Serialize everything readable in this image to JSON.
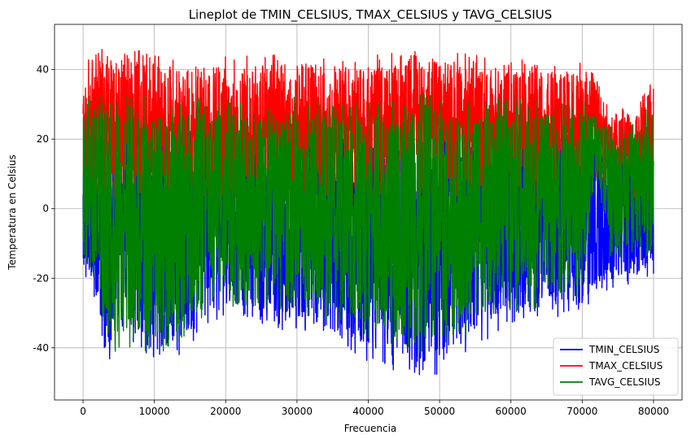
{
  "chart_data": {
    "type": "line",
    "title": "Lineplot de TMIN_CELSIUS, TMAX_CELSIUS y TAVG_CELSIUS",
    "xlabel": "Frecuencia",
    "ylabel": "Temperatura en Celsius",
    "xlim": [
      -4000,
      84000
    ],
    "ylim": [
      -55,
      53
    ],
    "xticks": [
      0,
      10000,
      20000,
      30000,
      40000,
      50000,
      60000,
      70000,
      80000
    ],
    "yticks": [
      -40,
      -20,
      0,
      20,
      40
    ],
    "grid": true,
    "legend_position": "lower-right",
    "x_range": [
      0,
      80000
    ],
    "series": [
      {
        "name": "TMIN_CELSIUS",
        "color": "#0000ff",
        "envelope": [
          {
            "x": 0,
            "low": -18,
            "high": 22
          },
          {
            "x": 2000,
            "low": -28,
            "high": 25
          },
          {
            "x": 3000,
            "low": -47,
            "high": 26
          },
          {
            "x": 6000,
            "low": -35,
            "high": 26
          },
          {
            "x": 10000,
            "low": -49,
            "high": 25
          },
          {
            "x": 20000,
            "low": -31,
            "high": 25
          },
          {
            "x": 30000,
            "low": -36,
            "high": 25
          },
          {
            "x": 40000,
            "low": -44,
            "high": 25
          },
          {
            "x": 48000,
            "low": -50,
            "high": 25
          },
          {
            "x": 55000,
            "low": -40,
            "high": 25
          },
          {
            "x": 60000,
            "low": -33,
            "high": 25
          },
          {
            "x": 70000,
            "low": -31,
            "high": 25
          },
          {
            "x": 72000,
            "low": -25,
            "high": 20
          },
          {
            "x": 76000,
            "low": -22,
            "high": 20
          },
          {
            "x": 80000,
            "low": -24,
            "high": 27
          }
        ]
      },
      {
        "name": "TMAX_CELSIUS",
        "color": "#ff0000",
        "envelope": [
          {
            "x": 0,
            "low": 2,
            "high": 34
          },
          {
            "x": 1000,
            "low": 0,
            "high": 46
          },
          {
            "x": 6000,
            "low": 0,
            "high": 47
          },
          {
            "x": 10000,
            "low": 0,
            "high": 44
          },
          {
            "x": 20000,
            "low": 0,
            "high": 44
          },
          {
            "x": 30000,
            "low": 0,
            "high": 45
          },
          {
            "x": 40000,
            "low": 0,
            "high": 44
          },
          {
            "x": 50000,
            "low": 0,
            "high": 46
          },
          {
            "x": 60000,
            "low": 0,
            "high": 43
          },
          {
            "x": 70000,
            "low": 0,
            "high": 42
          },
          {
            "x": 72000,
            "low": 8,
            "high": 38
          },
          {
            "x": 74000,
            "low": 4,
            "high": 28
          },
          {
            "x": 78000,
            "low": 2,
            "high": 30
          },
          {
            "x": 80000,
            "low": 0,
            "high": 44
          }
        ]
      },
      {
        "name": "TAVG_CELSIUS",
        "color": "#008000",
        "envelope": [
          {
            "x": 0,
            "low": -15,
            "high": 30
          },
          {
            "x": 2000,
            "low": -22,
            "high": 34
          },
          {
            "x": 3000,
            "low": -40,
            "high": 34
          },
          {
            "x": 10000,
            "low": -45,
            "high": 32
          },
          {
            "x": 20000,
            "low": -28,
            "high": 33
          },
          {
            "x": 30000,
            "low": -30,
            "high": 32
          },
          {
            "x": 40000,
            "low": -38,
            "high": 32
          },
          {
            "x": 48000,
            "low": -43,
            "high": 33
          },
          {
            "x": 55000,
            "low": -35,
            "high": 32
          },
          {
            "x": 60000,
            "low": -30,
            "high": 32
          },
          {
            "x": 70000,
            "low": -27,
            "high": 32
          },
          {
            "x": 72000,
            "low": 8,
            "high": 28
          },
          {
            "x": 74000,
            "low": -15,
            "high": 24
          },
          {
            "x": 78000,
            "low": -12,
            "high": 25
          },
          {
            "x": 80000,
            "low": -20,
            "high": 35
          }
        ]
      }
    ]
  }
}
